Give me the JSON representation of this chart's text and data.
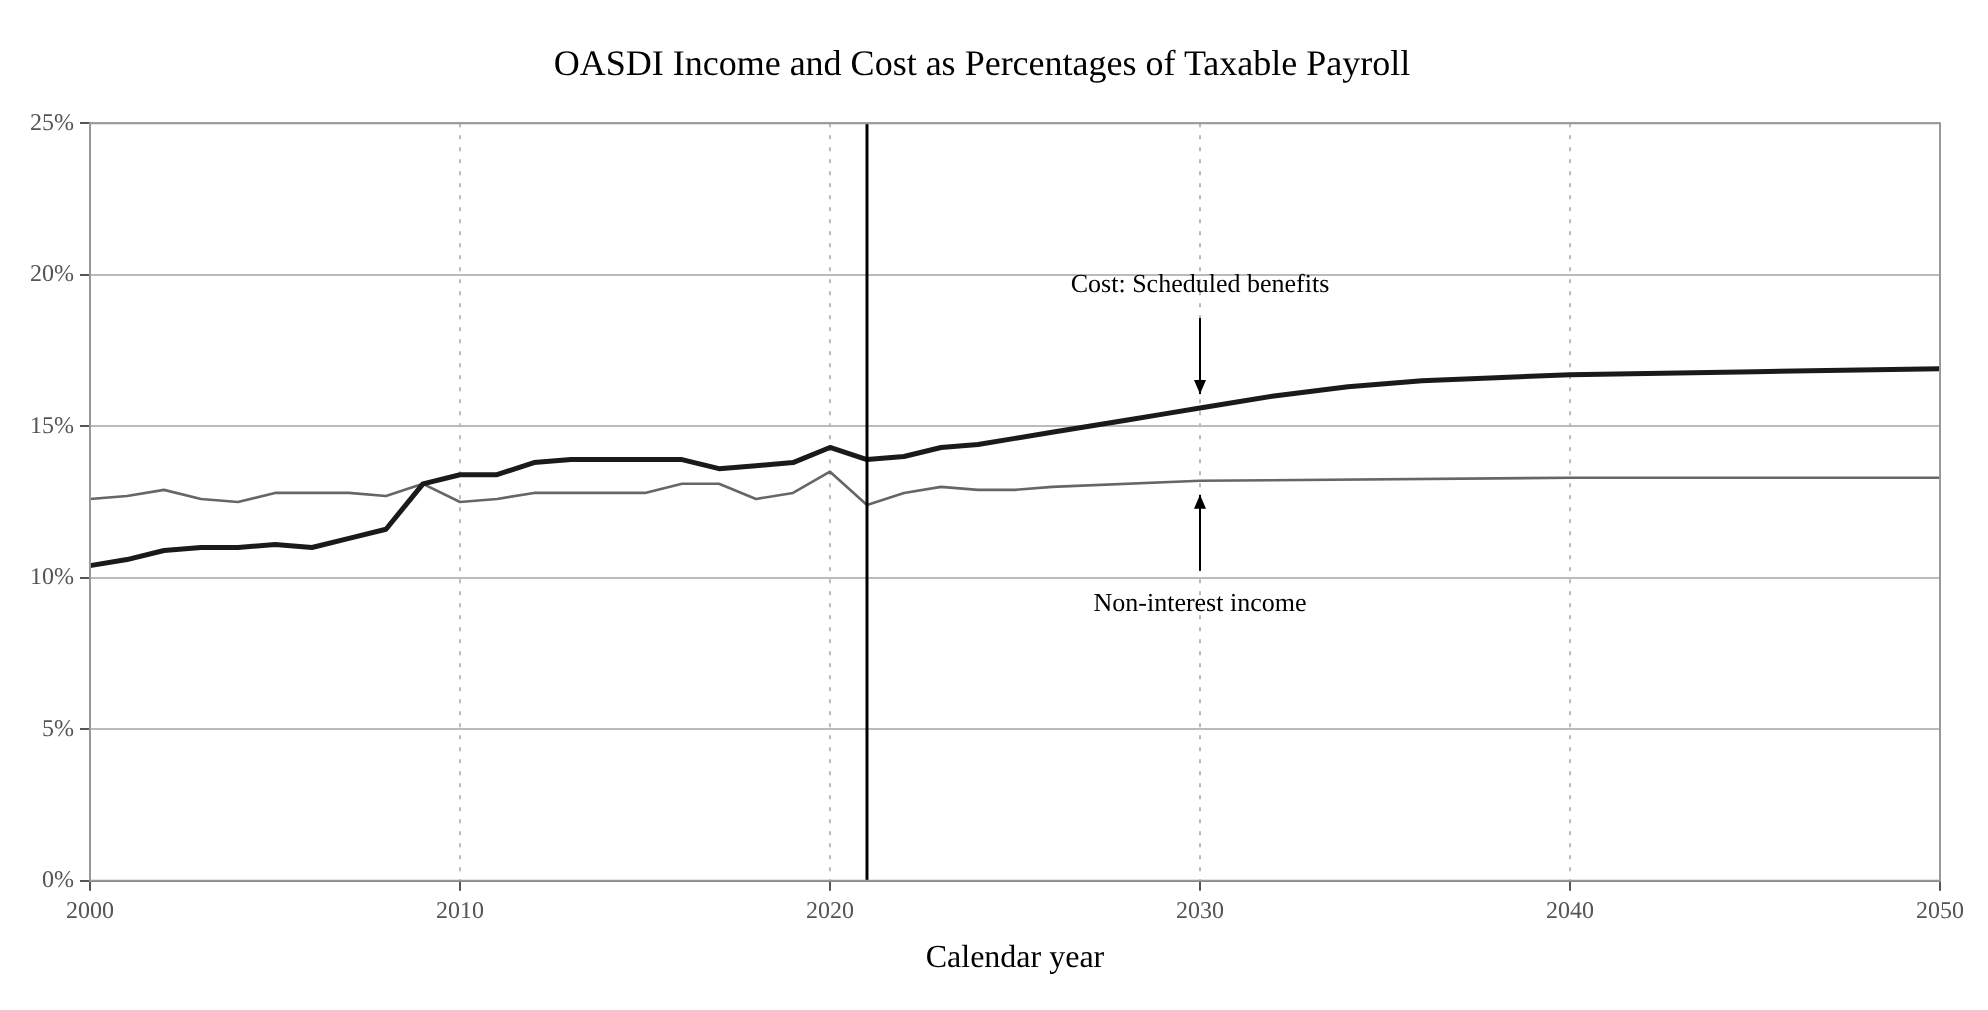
{
  "chart_data": {
    "type": "line",
    "title": "OASDI Income and Cost as Percentages of Taxable Payroll",
    "xlabel": "Calendar year",
    "xlim": [
      2000,
      2050
    ],
    "xticks": [
      2000,
      2010,
      2020,
      2030,
      2040,
      2050
    ],
    "ylim": [
      0,
      25
    ],
    "yticks": [
      {
        "value": 0,
        "label": "0%"
      },
      {
        "value": 5,
        "label": "5%"
      },
      {
        "value": 10,
        "label": "10%"
      },
      {
        "value": 15,
        "label": "15%"
      },
      {
        "value": 20,
        "label": "20%"
      },
      {
        "value": 25,
        "label": "25%"
      }
    ],
    "grid": true,
    "legend": false,
    "marker": "none",
    "line_style": "solid",
    "series": [
      {
        "color": "#1a1a1a",
        "x": [
          2000,
          2001,
          2002,
          2003,
          2004,
          2005,
          2006,
          2007,
          2008,
          2009,
          2010,
          2011,
          2012,
          2013,
          2014,
          2015,
          2016,
          2017,
          2018,
          2019,
          2020,
          2021,
          2022,
          2023,
          2024,
          2025,
          2026,
          2027,
          2028,
          2029,
          2030,
          2032,
          2034,
          2036,
          2038,
          2040,
          2045,
          2050
        ],
        "values": [
          10.4,
          10.6,
          10.9,
          11.0,
          11.0,
          11.1,
          11.0,
          11.3,
          11.6,
          13.1,
          13.4,
          13.4,
          13.8,
          13.9,
          13.9,
          13.9,
          13.9,
          13.6,
          13.7,
          13.8,
          14.3,
          13.9,
          14.0,
          14.3,
          14.4,
          14.6,
          14.8,
          15.0,
          15.2,
          15.4,
          15.6,
          16.0,
          16.3,
          16.5,
          16.6,
          16.7,
          16.8,
          16.9
        ]
      },
      {
        "color": "#666666",
        "x": [
          2000,
          2001,
          2002,
          2003,
          2004,
          2005,
          2006,
          2007,
          2008,
          2009,
          2010,
          2011,
          2012,
          2013,
          2014,
          2015,
          2016,
          2017,
          2018,
          2019,
          2020,
          2021,
          2022,
          2023,
          2024,
          2025,
          2026,
          2030,
          2040,
          2050
        ],
        "values": [
          12.6,
          12.7,
          12.9,
          12.6,
          12.5,
          12.8,
          12.8,
          12.8,
          12.7,
          13.1,
          12.5,
          12.6,
          12.8,
          12.8,
          12.8,
          12.8,
          13.1,
          13.1,
          12.6,
          12.8,
          13.5,
          12.4,
          12.8,
          13.0,
          12.9,
          12.9,
          13.0,
          13.2,
          13.3,
          13.3
        ]
      }
    ],
    "ref_lines": [
      {
        "axis": "x",
        "value": 2021,
        "color": "#000000"
      }
    ],
    "annotations": [
      {
        "text": "Cost: Scheduled benefits",
        "x": 2030,
        "y": 15.6
      },
      {
        "text": "Non-interest income",
        "x": 2030,
        "y": 13.2
      }
    ]
  }
}
